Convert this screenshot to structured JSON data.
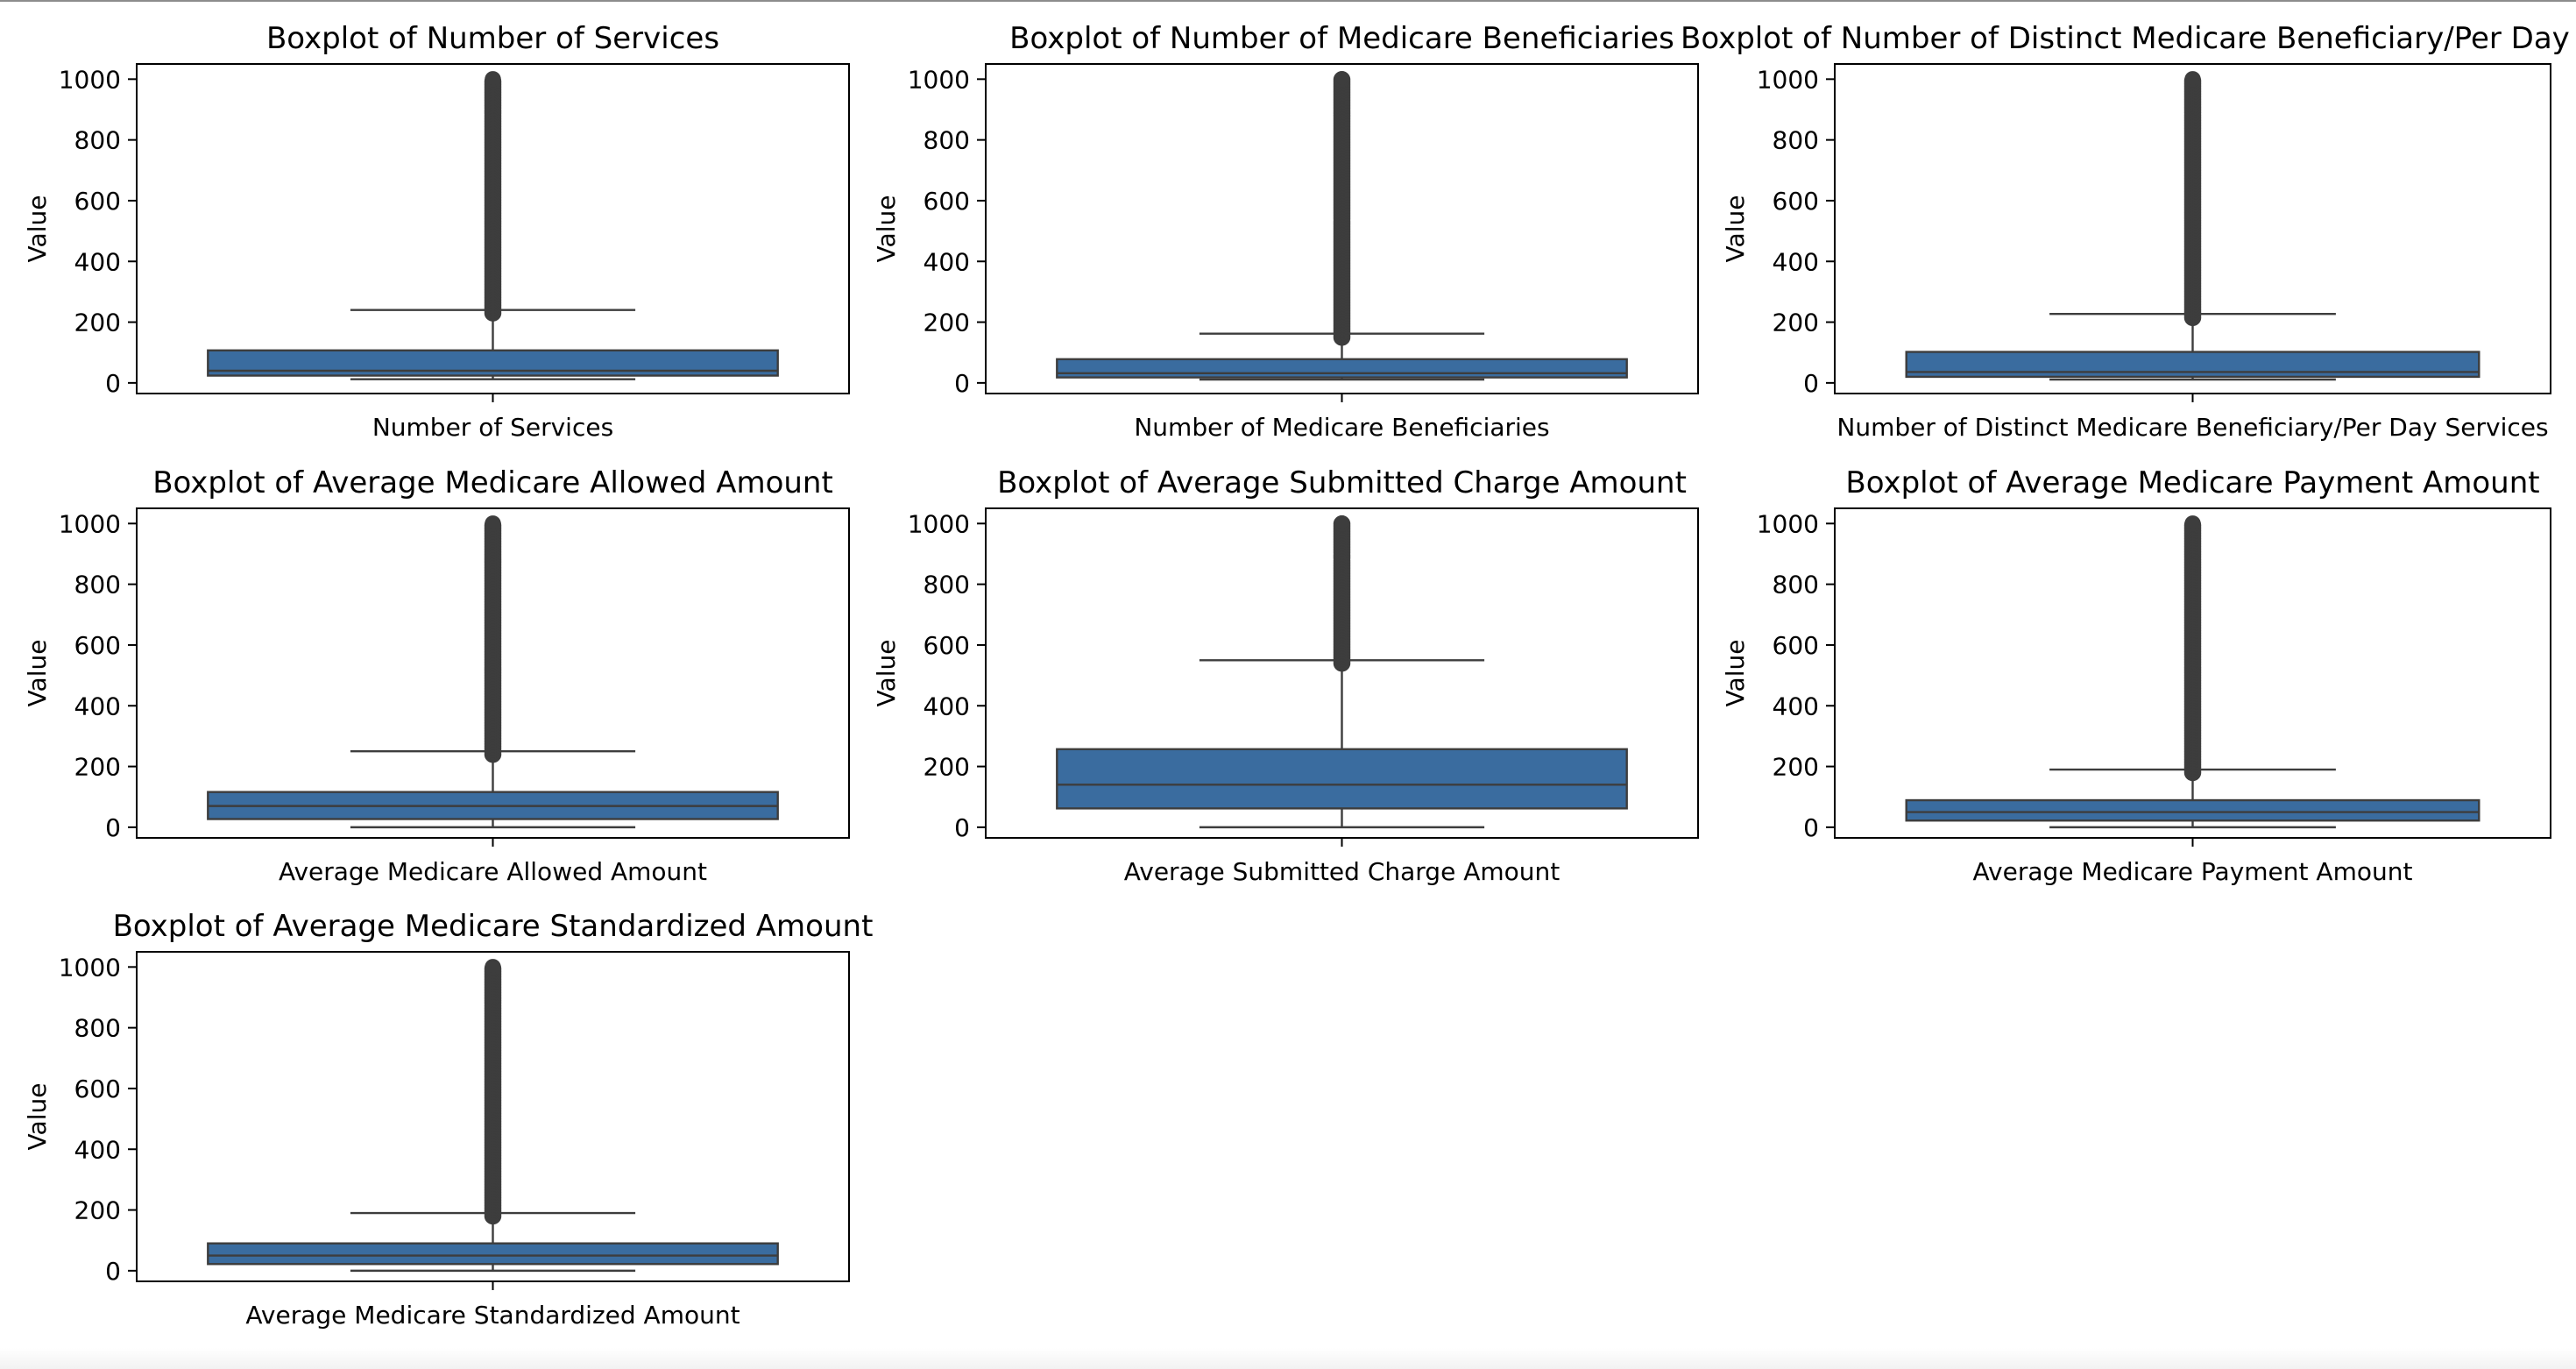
{
  "chart_data": [
    {
      "type": "box",
      "title": "Boxplot of Number of Services",
      "xlabel": "Number of Services",
      "ylabel": "Value",
      "ylim": [
        -35,
        1050
      ],
      "yticks": [
        0,
        200,
        400,
        600,
        800,
        1000
      ],
      "box": {
        "whisker_low": 12,
        "q1": 24,
        "median": 40,
        "q3": 107,
        "whisker_high": 240,
        "outliers_from": 230,
        "outliers_to": 1000
      }
    },
    {
      "type": "box",
      "title": "Boxplot of Number of Medicare Beneficiaries",
      "xlabel": "Number of Medicare Beneficiaries",
      "ylabel": "Value",
      "ylim": [
        -35,
        1050
      ],
      "yticks": [
        0,
        200,
        400,
        600,
        800,
        1000
      ],
      "box": {
        "whisker_low": 11,
        "q1": 18,
        "median": 32,
        "q3": 78,
        "whisker_high": 162,
        "outliers_from": 150,
        "outliers_to": 1000
      }
    },
    {
      "type": "box",
      "title": "Boxplot of Number of Distinct Medicare Beneficiary/Per Day Services",
      "xlabel": "Number of Distinct Medicare Beneficiary/Per Day Services",
      "ylabel": "Value",
      "ylim": [
        -35,
        1050
      ],
      "yticks": [
        0,
        200,
        400,
        600,
        800,
        1000
      ],
      "box": {
        "whisker_low": 11,
        "q1": 20,
        "median": 36,
        "q3": 102,
        "whisker_high": 227,
        "outliers_from": 215,
        "outliers_to": 1000
      }
    },
    {
      "type": "box",
      "title": "Boxplot of Average Medicare Allowed Amount",
      "xlabel": "Average Medicare Allowed Amount",
      "ylabel": "Value",
      "ylim": [
        -35,
        1050
      ],
      "yticks": [
        0,
        200,
        400,
        600,
        800,
        1000
      ],
      "box": {
        "whisker_low": 0,
        "q1": 27,
        "median": 70,
        "q3": 116,
        "whisker_high": 250,
        "outliers_from": 240,
        "outliers_to": 1000
      }
    },
    {
      "type": "box",
      "title": "Boxplot of Average Submitted Charge Amount",
      "xlabel": "Average Submitted Charge Amount",
      "ylabel": "Value",
      "ylim": [
        -35,
        1050
      ],
      "yticks": [
        0,
        200,
        400,
        600,
        800,
        1000
      ],
      "box": {
        "whisker_low": 0,
        "q1": 62,
        "median": 140,
        "q3": 257,
        "whisker_high": 550,
        "outliers_from": 540,
        "outliers_to": 1000
      }
    },
    {
      "type": "box",
      "title": "Boxplot of Average Medicare Payment Amount",
      "xlabel": "Average Medicare Payment Amount",
      "ylabel": "Value",
      "ylim": [
        -35,
        1050
      ],
      "yticks": [
        0,
        200,
        400,
        600,
        800,
        1000
      ],
      "box": {
        "whisker_low": 0,
        "q1": 22,
        "median": 50,
        "q3": 89,
        "whisker_high": 190,
        "outliers_from": 180,
        "outliers_to": 1000
      }
    },
    {
      "type": "box",
      "title": "Boxplot of Average Medicare Standardized Amount",
      "xlabel": "Average Medicare Standardized Amount",
      "ylabel": "Value",
      "ylim": [
        -35,
        1050
      ],
      "yticks": [
        0,
        200,
        400,
        600,
        800,
        1000
      ],
      "box": {
        "whisker_low": 0,
        "q1": 22,
        "median": 50,
        "q3": 90,
        "whisker_high": 190,
        "outliers_from": 180,
        "outliers_to": 1000
      }
    }
  ],
  "colors": {
    "box_fill": "#3a6c9f",
    "line": "#3d3d3d",
    "outlier": "#3d3d3d",
    "axis": "#000000",
    "text": "#000000"
  }
}
